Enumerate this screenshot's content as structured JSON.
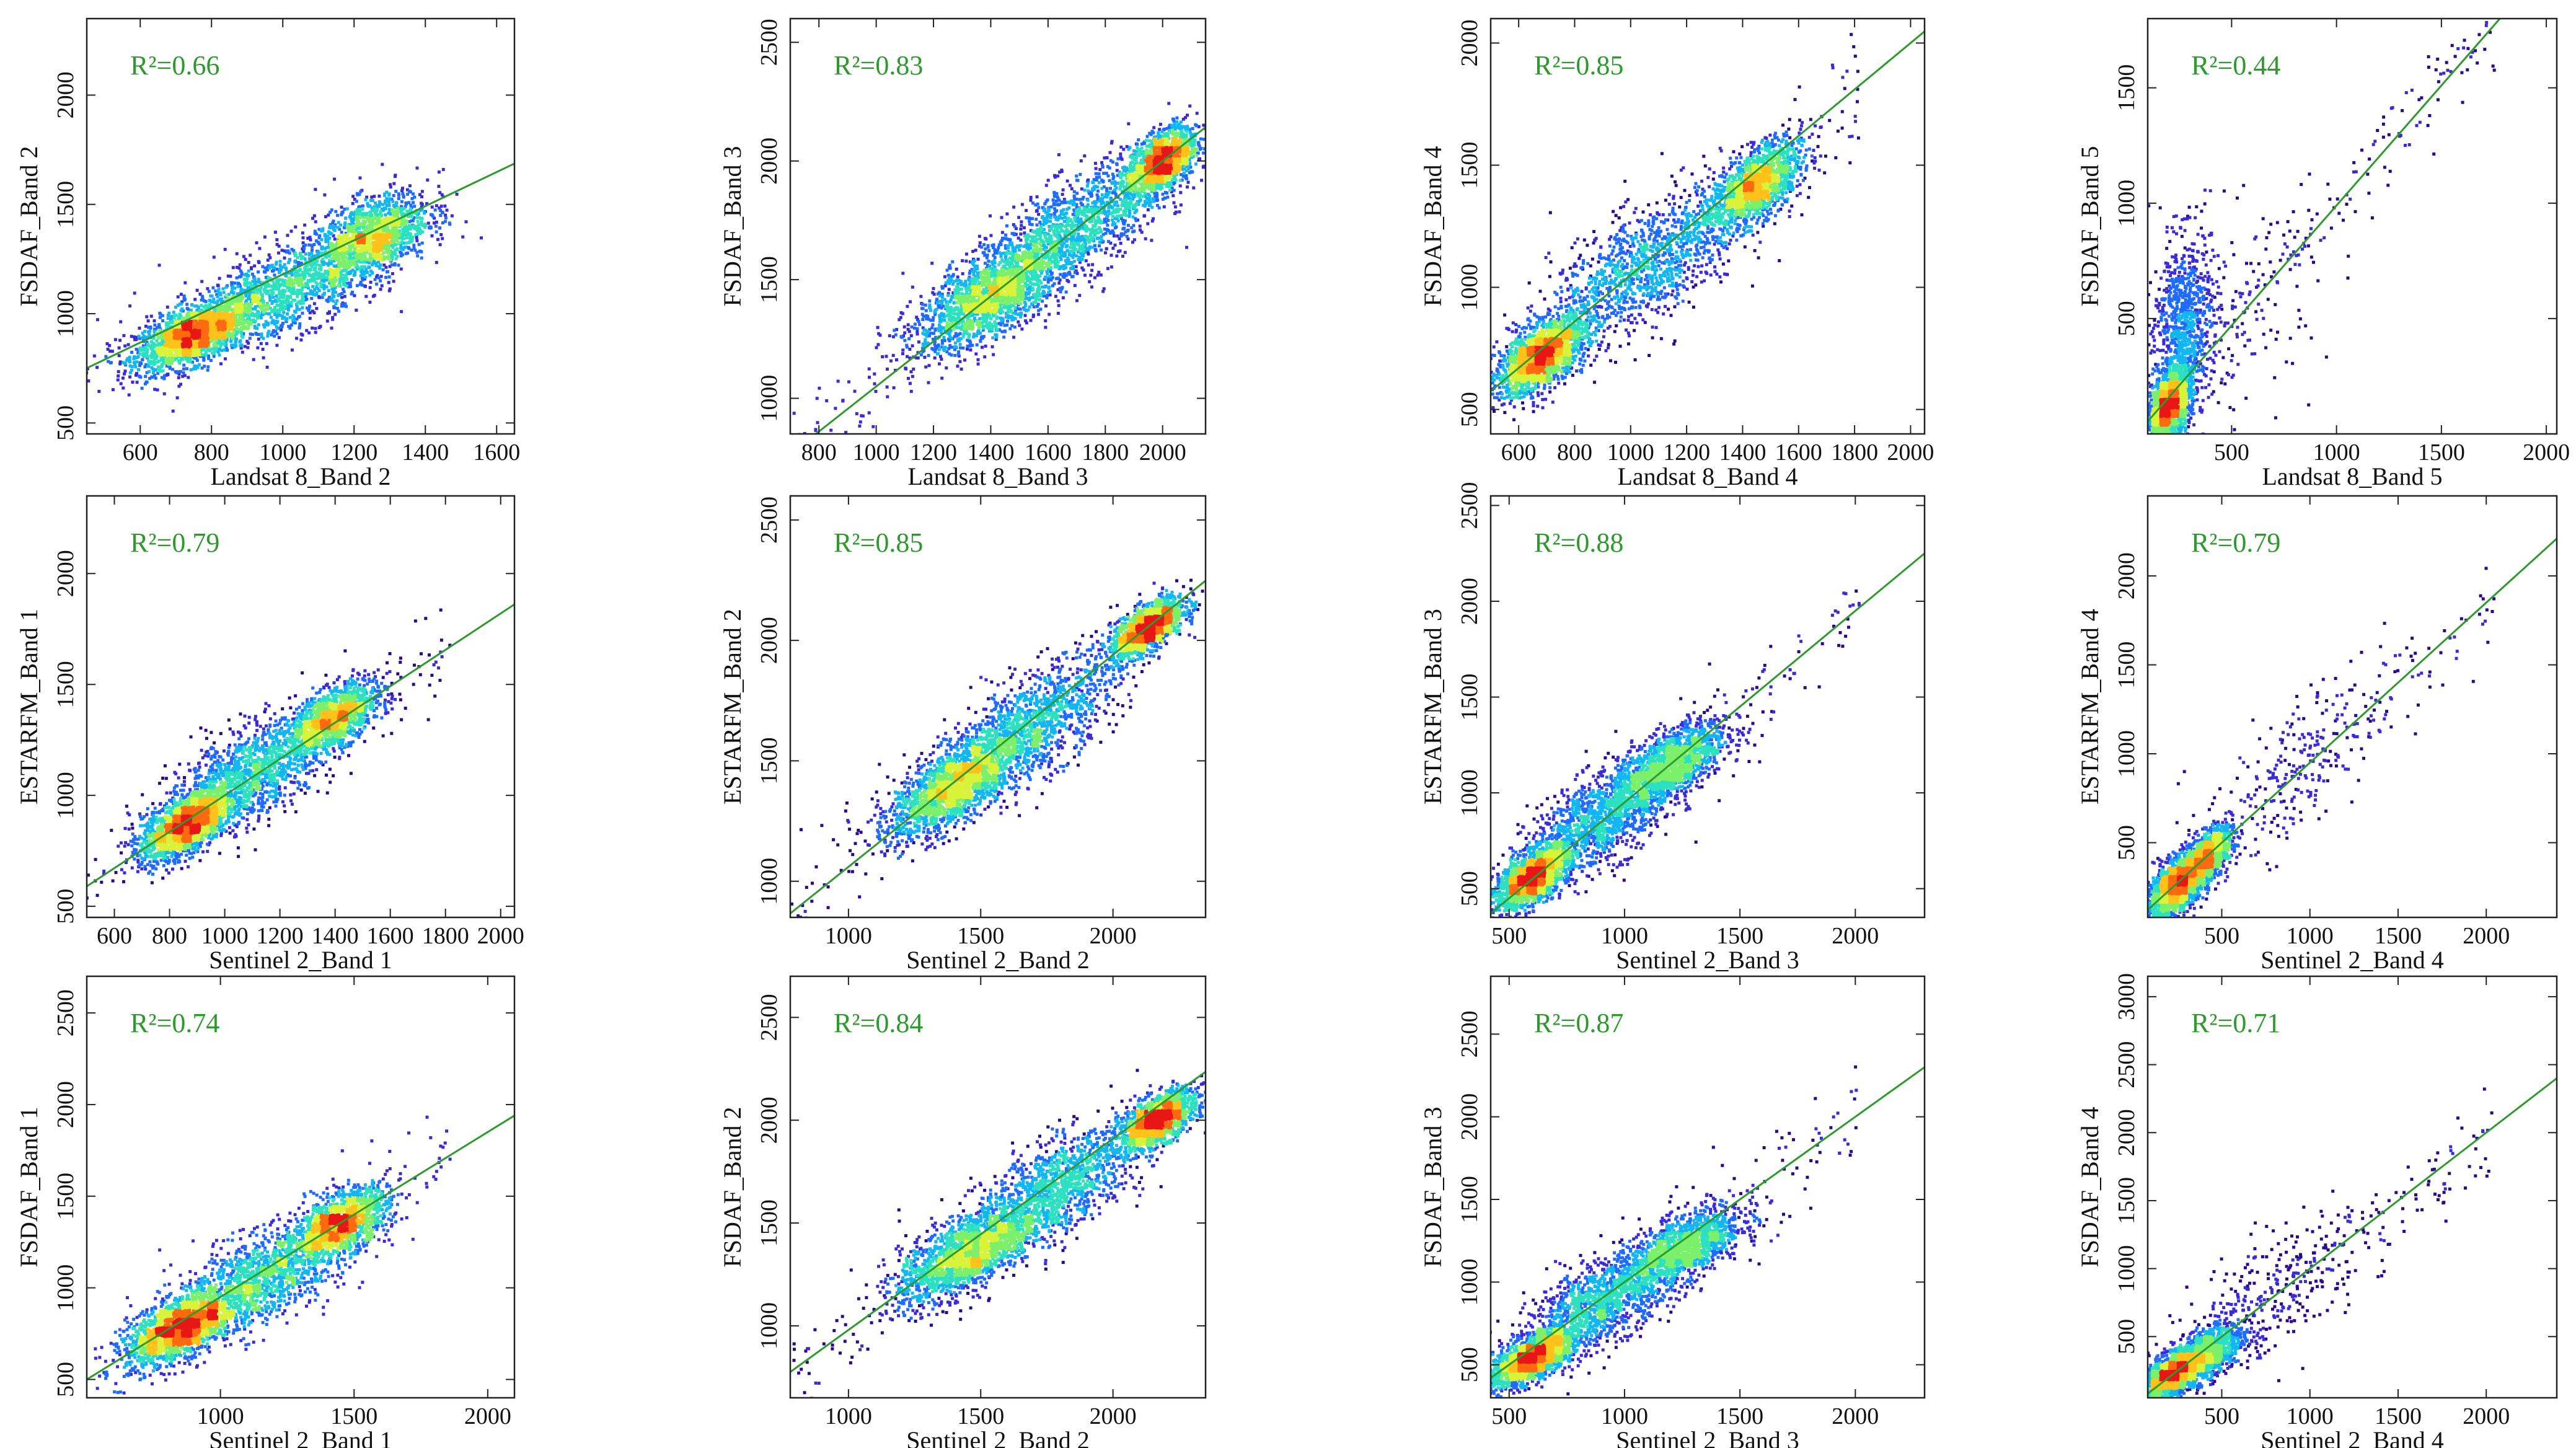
{
  "colors": {
    "line": "#2e9a2e",
    "r2_text": "#2e9a2e",
    "axis": "#222222",
    "density_scale": [
      "#2a0a8c",
      "#3b2bd6",
      "#1f6bff",
      "#12b6f0",
      "#2ce0c0",
      "#7cf06a",
      "#d9f23a",
      "#ffc21a",
      "#ff6a10",
      "#e81616"
    ]
  },
  "chart_data": [
    {
      "id": "p11",
      "type": "scatter",
      "xlabel": "Landsat 8_Band 2",
      "ylabel": "FSDAF_Band 2",
      "r2": "R²=0.66",
      "xlim": [
        450,
        1650
      ],
      "ylim": [
        450,
        2350
      ],
      "xticks": [
        600,
        800,
        1000,
        1200,
        1400,
        1600
      ],
      "yticks": [
        500,
        1000,
        1500,
        2000
      ],
      "xtick_labels": [
        "600",
        "800",
        "1000",
        "1200",
        "1400",
        "1600"
      ],
      "ytick_labels": [
        "500",
        "1000",
        "1500",
        "2000"
      ],
      "fit": {
        "slope": 0.78,
        "intercept": 400
      },
      "clusters": [
        {
          "cx": 750,
          "cy": 900,
          "sx": 80,
          "sy": 80,
          "n": 1800
        },
        {
          "cx": 1250,
          "cy": 1350,
          "sx": 80,
          "sy": 110,
          "n": 1400
        },
        {
          "cx": 1000,
          "cy": 1100,
          "sx": 130,
          "sy": 120,
          "n": 1200
        }
      ]
    },
    {
      "id": "p12",
      "type": "scatter",
      "xlabel": "Landsat 8_Band 3",
      "ylabel": "FSDAF_Band 3",
      "r2": "R²=0.83",
      "xlim": [
        700,
        2150
      ],
      "ylim": [
        850,
        2600
      ],
      "xticks": [
        800,
        1000,
        1200,
        1400,
        1600,
        1800,
        2000
      ],
      "yticks": [
        1000,
        1500,
        2000,
        2500
      ],
      "xtick_labels": [
        "800",
        "1000",
        "1200",
        "1400",
        "1600",
        "1800",
        "2000"
      ],
      "ytick_labels": [
        "1000",
        "1500",
        "2000",
        "2500"
      ],
      "fit": {
        "slope": 0.95,
        "intercept": 100
      },
      "clusters": [
        {
          "cx": 1400,
          "cy": 1430,
          "sx": 130,
          "sy": 110,
          "n": 1800
        },
        {
          "cx": 2000,
          "cy": 2000,
          "sx": 60,
          "sy": 80,
          "n": 1400
        },
        {
          "cx": 1700,
          "cy": 1720,
          "sx": 150,
          "sy": 130,
          "n": 1200
        }
      ]
    },
    {
      "id": "p13",
      "type": "scatter",
      "xlabel": "Landsat 8_Band 4",
      "ylabel": "FSDAF_Band 4",
      "r2": "R²=0.85",
      "xlim": [
        500,
        2050
      ],
      "ylim": [
        400,
        2100
      ],
      "xticks": [
        600,
        800,
        1000,
        1200,
        1400,
        1600,
        1800,
        2000
      ],
      "yticks": [
        500,
        1000,
        1500,
        2000
      ],
      "xtick_labels": [
        "600",
        "800",
        "1000",
        "1200",
        "1400",
        "1600",
        "1800",
        "2000"
      ],
      "ytick_labels": [
        "500",
        "1000",
        "1500",
        "2000"
      ],
      "fit": {
        "slope": 0.95,
        "intercept": 100
      },
      "clusters": [
        {
          "cx": 680,
          "cy": 720,
          "sx": 80,
          "sy": 80,
          "n": 1800
        },
        {
          "cx": 1450,
          "cy": 1420,
          "sx": 80,
          "sy": 90,
          "n": 1400
        },
        {
          "cx": 1050,
          "cy": 1080,
          "sx": 170,
          "sy": 150,
          "n": 1200
        }
      ]
    },
    {
      "id": "p14",
      "type": "scatter",
      "xlabel": "Landsat 8_Band 5",
      "ylabel": "FSDAF_Band 5",
      "r2": "R²=0.44",
      "xlim": [
        100,
        2050
      ],
      "ylim": [
        0,
        1800
      ],
      "xticks": [
        500,
        1000,
        1500,
        2000
      ],
      "yticks": [
        500,
        1000,
        1500
      ],
      "xtick_labels": [
        "500",
        "1000",
        "1500",
        "2000"
      ],
      "ytick_labels": [
        "500",
        "1000",
        "1500"
      ],
      "fit": {
        "slope": 1.04,
        "intercept": -50
      },
      "clusters": [
        {
          "cx": 200,
          "cy": 120,
          "sx": 50,
          "sy": 90,
          "n": 1800
        },
        {
          "cx": 270,
          "cy": 450,
          "sx": 70,
          "sy": 250,
          "n": 900
        },
        {
          "cx": 500,
          "cy": 500,
          "sx": 250,
          "sy": 300,
          "n": 150
        }
      ]
    },
    {
      "id": "p21",
      "type": "scatter",
      "xlabel": "Sentinel 2_Band 1",
      "ylabel": "ESTARFM_Band 1",
      "r2": "R²=0.79",
      "xlim": [
        500,
        2050
      ],
      "ylim": [
        450,
        2350
      ],
      "xticks": [
        600,
        800,
        1000,
        1200,
        1400,
        1600,
        1800,
        2000
      ],
      "yticks": [
        500,
        1000,
        1500,
        2000
      ],
      "xtick_labels": [
        "600",
        "800",
        "1000",
        "1200",
        "1400",
        "1600",
        "1800",
        "2000"
      ],
      "ytick_labels": [
        "500",
        "1000",
        "1500",
        "2000"
      ],
      "fit": {
        "slope": 0.82,
        "intercept": 180
      },
      "clusters": [
        {
          "cx": 860,
          "cy": 870,
          "sx": 80,
          "sy": 80,
          "n": 1800
        },
        {
          "cx": 1400,
          "cy": 1350,
          "sx": 80,
          "sy": 80,
          "n": 1300
        },
        {
          "cx": 1100,
          "cy": 1100,
          "sx": 150,
          "sy": 130,
          "n": 1300
        }
      ]
    },
    {
      "id": "p22",
      "type": "scatter",
      "xlabel": "Sentinel 2_Band 2",
      "ylabel": "ESTARFM_Band 2",
      "r2": "R²=0.85",
      "xlim": [
        780,
        2350
      ],
      "ylim": [
        850,
        2600
      ],
      "xticks": [
        1000,
        1500,
        2000
      ],
      "yticks": [
        1000,
        1500,
        2000,
        2500
      ],
      "xtick_labels": [
        "1000",
        "1500",
        "2000"
      ],
      "ytick_labels": [
        "1000",
        "1500",
        "2000",
        "2500"
      ],
      "fit": {
        "slope": 0.88,
        "intercept": 180
      },
      "clusters": [
        {
          "cx": 1400,
          "cy": 1400,
          "sx": 120,
          "sy": 100,
          "n": 1800
        },
        {
          "cx": 2130,
          "cy": 2050,
          "sx": 70,
          "sy": 60,
          "n": 1400
        },
        {
          "cx": 1700,
          "cy": 1650,
          "sx": 160,
          "sy": 130,
          "n": 1200
        }
      ]
    },
    {
      "id": "p23",
      "type": "scatter",
      "xlabel": "Sentinel 2_Band 3",
      "ylabel": "ESTARFM_Band 3",
      "r2": "R²=0.88",
      "xlim": [
        420,
        2300
      ],
      "ylim": [
        350,
        2550
      ],
      "xticks": [
        500,
        1000,
        1500,
        2000
      ],
      "yticks": [
        500,
        1000,
        1500,
        2000,
        2500
      ],
      "xtick_labels": [
        "500",
        "1000",
        "1500",
        "2000"
      ],
      "ytick_labels": [
        "500",
        "1000",
        "1500",
        "2000",
        "2500"
      ],
      "fit": {
        "slope": 1.0,
        "intercept": -50
      },
      "clusters": [
        {
          "cx": 600,
          "cy": 560,
          "sx": 80,
          "sy": 80,
          "n": 1800
        },
        {
          "cx": 1200,
          "cy": 1150,
          "sx": 120,
          "sy": 110,
          "n": 1400
        },
        {
          "cx": 900,
          "cy": 860,
          "sx": 160,
          "sy": 150,
          "n": 1200
        }
      ]
    },
    {
      "id": "p24",
      "type": "scatter",
      "xlabel": "Sentinel 2_Band 4",
      "ylabel": "ESTARFM_Band 4",
      "r2": "R²=0.79",
      "xlim": [
        80,
        2400
      ],
      "ylim": [
        80,
        2450
      ],
      "xticks": [
        500,
        1000,
        1500,
        2000
      ],
      "yticks": [
        500,
        1000,
        1500,
        2000
      ],
      "xtick_labels": [
        "500",
        "1000",
        "1500",
        "2000"
      ],
      "ytick_labels": [
        "500",
        "1000",
        "1500",
        "2000"
      ],
      "fit": {
        "slope": 0.9,
        "intercept": 50
      },
      "clusters": [
        {
          "cx": 250,
          "cy": 260,
          "sx": 90,
          "sy": 90,
          "n": 1800
        },
        {
          "cx": 420,
          "cy": 430,
          "sx": 70,
          "sy": 80,
          "n": 1000
        },
        {
          "cx": 900,
          "cy": 900,
          "sx": 250,
          "sy": 250,
          "n": 200
        }
      ]
    },
    {
      "id": "p31",
      "type": "scatter",
      "xlabel": "Sentinel 2_Band 1",
      "ylabel": "FSDAF_Band 1",
      "r2": "R²=0.74",
      "xlim": [
        500,
        2100
      ],
      "ylim": [
        400,
        2700
      ],
      "xticks": [
        1000,
        1500,
        2000
      ],
      "yticks": [
        500,
        1000,
        1500,
        2000,
        2500
      ],
      "xtick_labels": [
        "1000",
        "1500",
        "2000"
      ],
      "ytick_labels": [
        "500",
        "1000",
        "1500",
        "2000",
        "2500"
      ],
      "fit": {
        "slope": 0.9,
        "intercept": 50
      },
      "clusters": [
        {
          "cx": 850,
          "cy": 780,
          "sx": 100,
          "sy": 100,
          "n": 1800
        },
        {
          "cx": 1450,
          "cy": 1350,
          "sx": 90,
          "sy": 100,
          "n": 1300
        },
        {
          "cx": 1150,
          "cy": 1050,
          "sx": 160,
          "sy": 150,
          "n": 1200
        }
      ]
    },
    {
      "id": "p32",
      "type": "scatter",
      "xlabel": "Sentinel 2_Band 2",
      "ylabel": "FSDAF_Band 2",
      "r2": "R²=0.84",
      "xlim": [
        780,
        2350
      ],
      "ylim": [
        650,
        2700
      ],
      "xticks": [
        1000,
        1500,
        2000
      ],
      "yticks": [
        1000,
        1500,
        2000,
        2500
      ],
      "xtick_labels": [
        "1000",
        "1500",
        "2000"
      ],
      "ytick_labels": [
        "1000",
        "1500",
        "2000",
        "2500"
      ],
      "fit": {
        "slope": 0.93,
        "intercept": 50
      },
      "clusters": [
        {
          "cx": 1450,
          "cy": 1350,
          "sx": 130,
          "sy": 110,
          "n": 1800
        },
        {
          "cx": 2170,
          "cy": 2000,
          "sx": 70,
          "sy": 70,
          "n": 1400
        },
        {
          "cx": 1800,
          "cy": 1680,
          "sx": 160,
          "sy": 140,
          "n": 1200
        }
      ]
    },
    {
      "id": "p33",
      "type": "scatter",
      "xlabel": "Sentinel 2_Band 3",
      "ylabel": "FSDAF_Band 3",
      "r2": "R²=0.87",
      "xlim": [
        420,
        2300
      ],
      "ylim": [
        300,
        2850
      ],
      "xticks": [
        500,
        1000,
        1500,
        2000
      ],
      "yticks": [
        500,
        1000,
        1500,
        2000,
        2500
      ],
      "xtick_labels": [
        "500",
        "1000",
        "1500",
        "2000"
      ],
      "ytick_labels": [
        "500",
        "1000",
        "1500",
        "2000",
        "2500"
      ],
      "fit": {
        "slope": 1.0,
        "intercept": 0
      },
      "clusters": [
        {
          "cx": 600,
          "cy": 540,
          "sx": 90,
          "sy": 80,
          "n": 1800
        },
        {
          "cx": 1250,
          "cy": 1200,
          "sx": 130,
          "sy": 120,
          "n": 1400
        },
        {
          "cx": 900,
          "cy": 880,
          "sx": 160,
          "sy": 150,
          "n": 1200
        }
      ]
    },
    {
      "id": "p34",
      "type": "scatter",
      "xlabel": "Sentinel 2_Band 4",
      "ylabel": "FSDAF_Band 4",
      "r2": "R²=0.71",
      "xlim": [
        80,
        2400
      ],
      "ylim": [
        50,
        3150
      ],
      "xticks": [
        500,
        1000,
        1500,
        2000
      ],
      "yticks": [
        500,
        1000,
        1500,
        2000,
        2500,
        3000
      ],
      "xtick_labels": [
        "500",
        "1000",
        "1500",
        "2000"
      ],
      "ytick_labels": [
        "500",
        "1000",
        "1500",
        "2000",
        "2500",
        "3000"
      ],
      "fit": {
        "slope": 1.0,
        "intercept": 0
      },
      "clusters": [
        {
          "cx": 230,
          "cy": 230,
          "sx": 90,
          "sy": 90,
          "n": 1800
        },
        {
          "cx": 420,
          "cy": 380,
          "sx": 100,
          "sy": 120,
          "n": 1000
        },
        {
          "cx": 800,
          "cy": 850,
          "sx": 250,
          "sy": 280,
          "n": 250
        }
      ]
    }
  ]
}
